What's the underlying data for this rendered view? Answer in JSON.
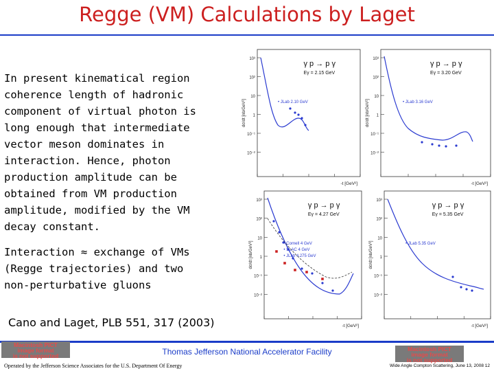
{
  "slide": {
    "title": "Regge (VM) Calculations by Laget",
    "body_lines": [
      "In present kinematical region",
      "coherence length of hadronic",
      "component of virtual photon is",
      "long enough that intermediate",
      "vector meson dominates in",
      "interaction. Hence, photon",
      "production amplitude can be",
      "obtained from VM production",
      "amplitude, modified by the VM",
      "decay constant."
    ],
    "body2_lines": [
      "Interaction ≈ exchange of VMs",
      "(Regge trajectories) and two",
      "non-perturbative gluons"
    ],
    "citation": "Cano and Laget, PLB 551, 317 (2003)",
    "footer_lab": "Thomas Jefferson National Accelerator Facility",
    "footer_operated": "Operated by the Jefferson Science Associates for the U.S. Department Of Energy",
    "footer_talk": "Wide Angle Compton Scattering, June 13, 2008 12",
    "pict_lines": [
      "Macintosh PICT",
      "image format",
      "is not supported"
    ]
  },
  "plots": {
    "reaction": "γ p → p γ",
    "xlabel": "-t [GeV²]",
    "ylabel": "dσ/dt [nb/GeV²]",
    "panels": [
      {
        "energy": "Eγ = 2.15 GeV",
        "legend": [
          "JLab 2.10 GeV"
        ]
      },
      {
        "energy": "Eγ = 3.20 GeV",
        "legend": [
          "JLab 3.16 GeV"
        ]
      },
      {
        "energy": "Eγ = 4.27 GeV",
        "legend": [
          "Cornell 4 GeV",
          "SLAC 4 GeV",
          "JLab 4.275 GeV"
        ]
      },
      {
        "energy": "Eγ = 5.35 GeV",
        "legend": [
          "JLab 5.35 GeV"
        ]
      }
    ],
    "colors": {
      "curve": "#2a3ad0",
      "dashed": "#444444",
      "data": "#2a3ad0",
      "cornell": "#cc2222",
      "frame": "#333333"
    }
  }
}
